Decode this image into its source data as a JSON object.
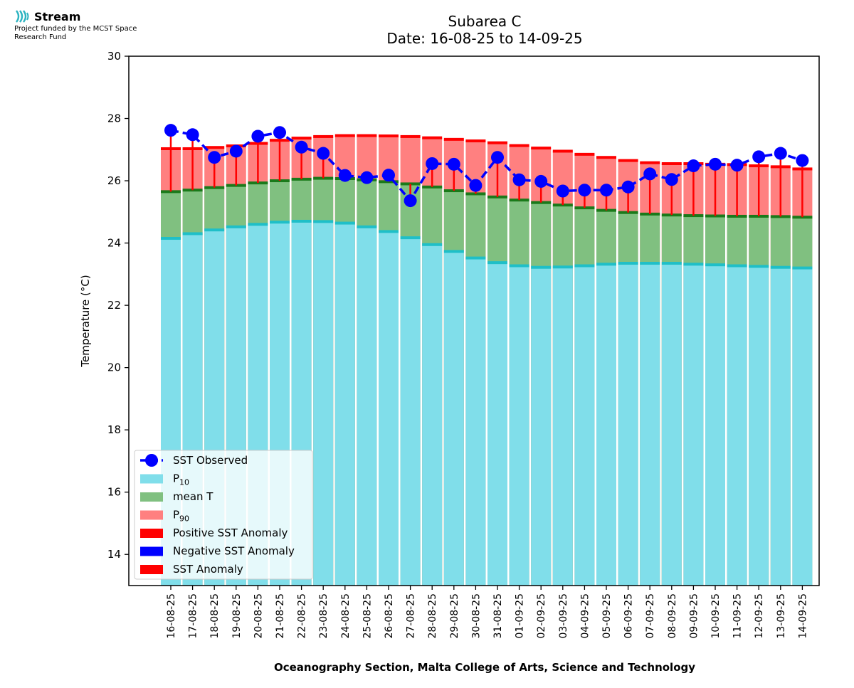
{
  "header": {
    "brand": "Stream",
    "funding": "Project funded by the MCST Space Research Fund"
  },
  "chart_data": {
    "type": "bar",
    "title": "Subarea C",
    "subtitle": "Date: 16-08-25 to 14-09-25",
    "xlabel": "Oceanography Section, Malta College of Arts, Science and Technology",
    "ylabel": "Temperature (°C)",
    "ylim": [
      13,
      30
    ],
    "yticks": [
      14,
      16,
      18,
      20,
      22,
      24,
      26,
      28,
      30
    ],
    "grid": false,
    "legend_position": "bottom-left",
    "categories": [
      "16-08-25",
      "17-08-25",
      "18-08-25",
      "19-08-25",
      "20-08-25",
      "21-08-25",
      "22-08-25",
      "23-08-25",
      "24-08-25",
      "25-08-25",
      "26-08-25",
      "27-08-25",
      "28-08-25",
      "29-08-25",
      "30-08-25",
      "31-08-25",
      "01-09-25",
      "02-09-25",
      "03-09-25",
      "04-09-25",
      "05-09-25",
      "06-09-25",
      "07-09-25",
      "08-09-25",
      "09-09-25",
      "10-09-25",
      "11-09-25",
      "12-09-25",
      "13-09-25",
      "14-09-25"
    ],
    "series": [
      {
        "name": "SST Observed",
        "color": "#0000ff",
        "style": "dashed-line-markers",
        "values": [
          27.62,
          27.48,
          26.75,
          26.95,
          27.43,
          27.55,
          27.08,
          26.88,
          26.17,
          26.1,
          26.18,
          25.36,
          26.55,
          26.53,
          25.85,
          26.75,
          26.03,
          25.98,
          25.67,
          25.7,
          25.7,
          25.8,
          26.22,
          26.04,
          26.48,
          26.53,
          26.5,
          26.77,
          26.88,
          26.65
        ]
      },
      {
        "name": "P10",
        "color": "#80deea",
        "values": [
          24.15,
          24.3,
          24.42,
          24.52,
          24.6,
          24.67,
          24.7,
          24.69,
          24.64,
          24.52,
          24.37,
          24.17,
          23.95,
          23.73,
          23.52,
          23.37,
          23.27,
          23.22,
          23.23,
          23.27,
          23.32,
          23.35,
          23.35,
          23.35,
          23.32,
          23.3,
          23.27,
          23.25,
          23.22,
          23.2
        ]
      },
      {
        "name": "mean T",
        "color": "#80c080",
        "values": [
          25.65,
          25.7,
          25.78,
          25.85,
          25.93,
          26.0,
          26.05,
          26.08,
          26.07,
          26.03,
          25.97,
          25.9,
          25.8,
          25.68,
          25.58,
          25.48,
          25.38,
          25.3,
          25.22,
          25.13,
          25.05,
          24.98,
          24.93,
          24.9,
          24.88,
          24.87,
          24.86,
          24.86,
          24.85,
          24.83
        ]
      },
      {
        "name": "P90",
        "color": "#ff8080",
        "values": [
          27.03,
          27.03,
          27.07,
          27.12,
          27.2,
          27.3,
          27.37,
          27.42,
          27.45,
          27.45,
          27.44,
          27.42,
          27.38,
          27.33,
          27.28,
          27.22,
          27.13,
          27.05,
          26.95,
          26.85,
          26.75,
          26.65,
          26.58,
          26.55,
          26.55,
          26.53,
          26.52,
          26.48,
          26.45,
          26.38
        ]
      }
    ],
    "legend": [
      {
        "label": "SST Observed",
        "color": "#0000ff",
        "kind": "line"
      },
      {
        "label": "P",
        "sub": "10",
        "color": "#80deea",
        "kind": "patch"
      },
      {
        "label": "mean T",
        "color": "#80c080",
        "kind": "patch"
      },
      {
        "label": "P",
        "sub": "90",
        "color": "#ff8080",
        "kind": "patch"
      },
      {
        "label": "Positive SST Anomaly",
        "color": "#ff0000",
        "kind": "patch"
      },
      {
        "label": "Negative SST Anomaly",
        "color": "#0000ff",
        "kind": "patch"
      },
      {
        "label": "SST Anomaly",
        "color": "#ff0000",
        "kind": "patch"
      }
    ],
    "colors": {
      "p10_edge": "#1fbfc8",
      "mean_edge": "#1a7a1a",
      "p90_edge": "#ff0000",
      "anomaly": "#ff0000",
      "observed": "#0000ff"
    }
  }
}
